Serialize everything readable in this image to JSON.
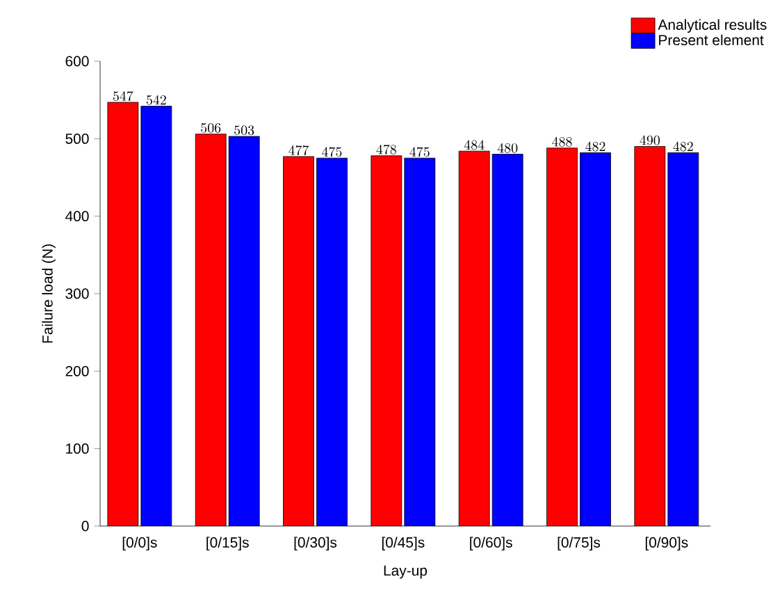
{
  "chart_data": {
    "type": "bar",
    "xlabel": "Lay-up",
    "ylabel": "Failure load (N)",
    "categories": [
      "[0/0]s",
      "[0/15]s",
      "[0/30]s",
      "[0/45]s",
      "[0/60]s",
      "[0/75]s",
      "[0/90]s"
    ],
    "series": [
      {
        "name": "Analytical results",
        "color": "#ff0000",
        "values": [
          547,
          506,
          477,
          478,
          484,
          488,
          490
        ]
      },
      {
        "name": "Present element",
        "color": "#0000ff",
        "values": [
          542,
          503,
          475,
          475,
          480,
          482,
          482
        ]
      }
    ],
    "ylim": [
      0,
      600
    ],
    "yticks": [
      0,
      100,
      200,
      300,
      400,
      500,
      600
    ],
    "data_labels": true,
    "legend": "top right",
    "grid": false
  }
}
